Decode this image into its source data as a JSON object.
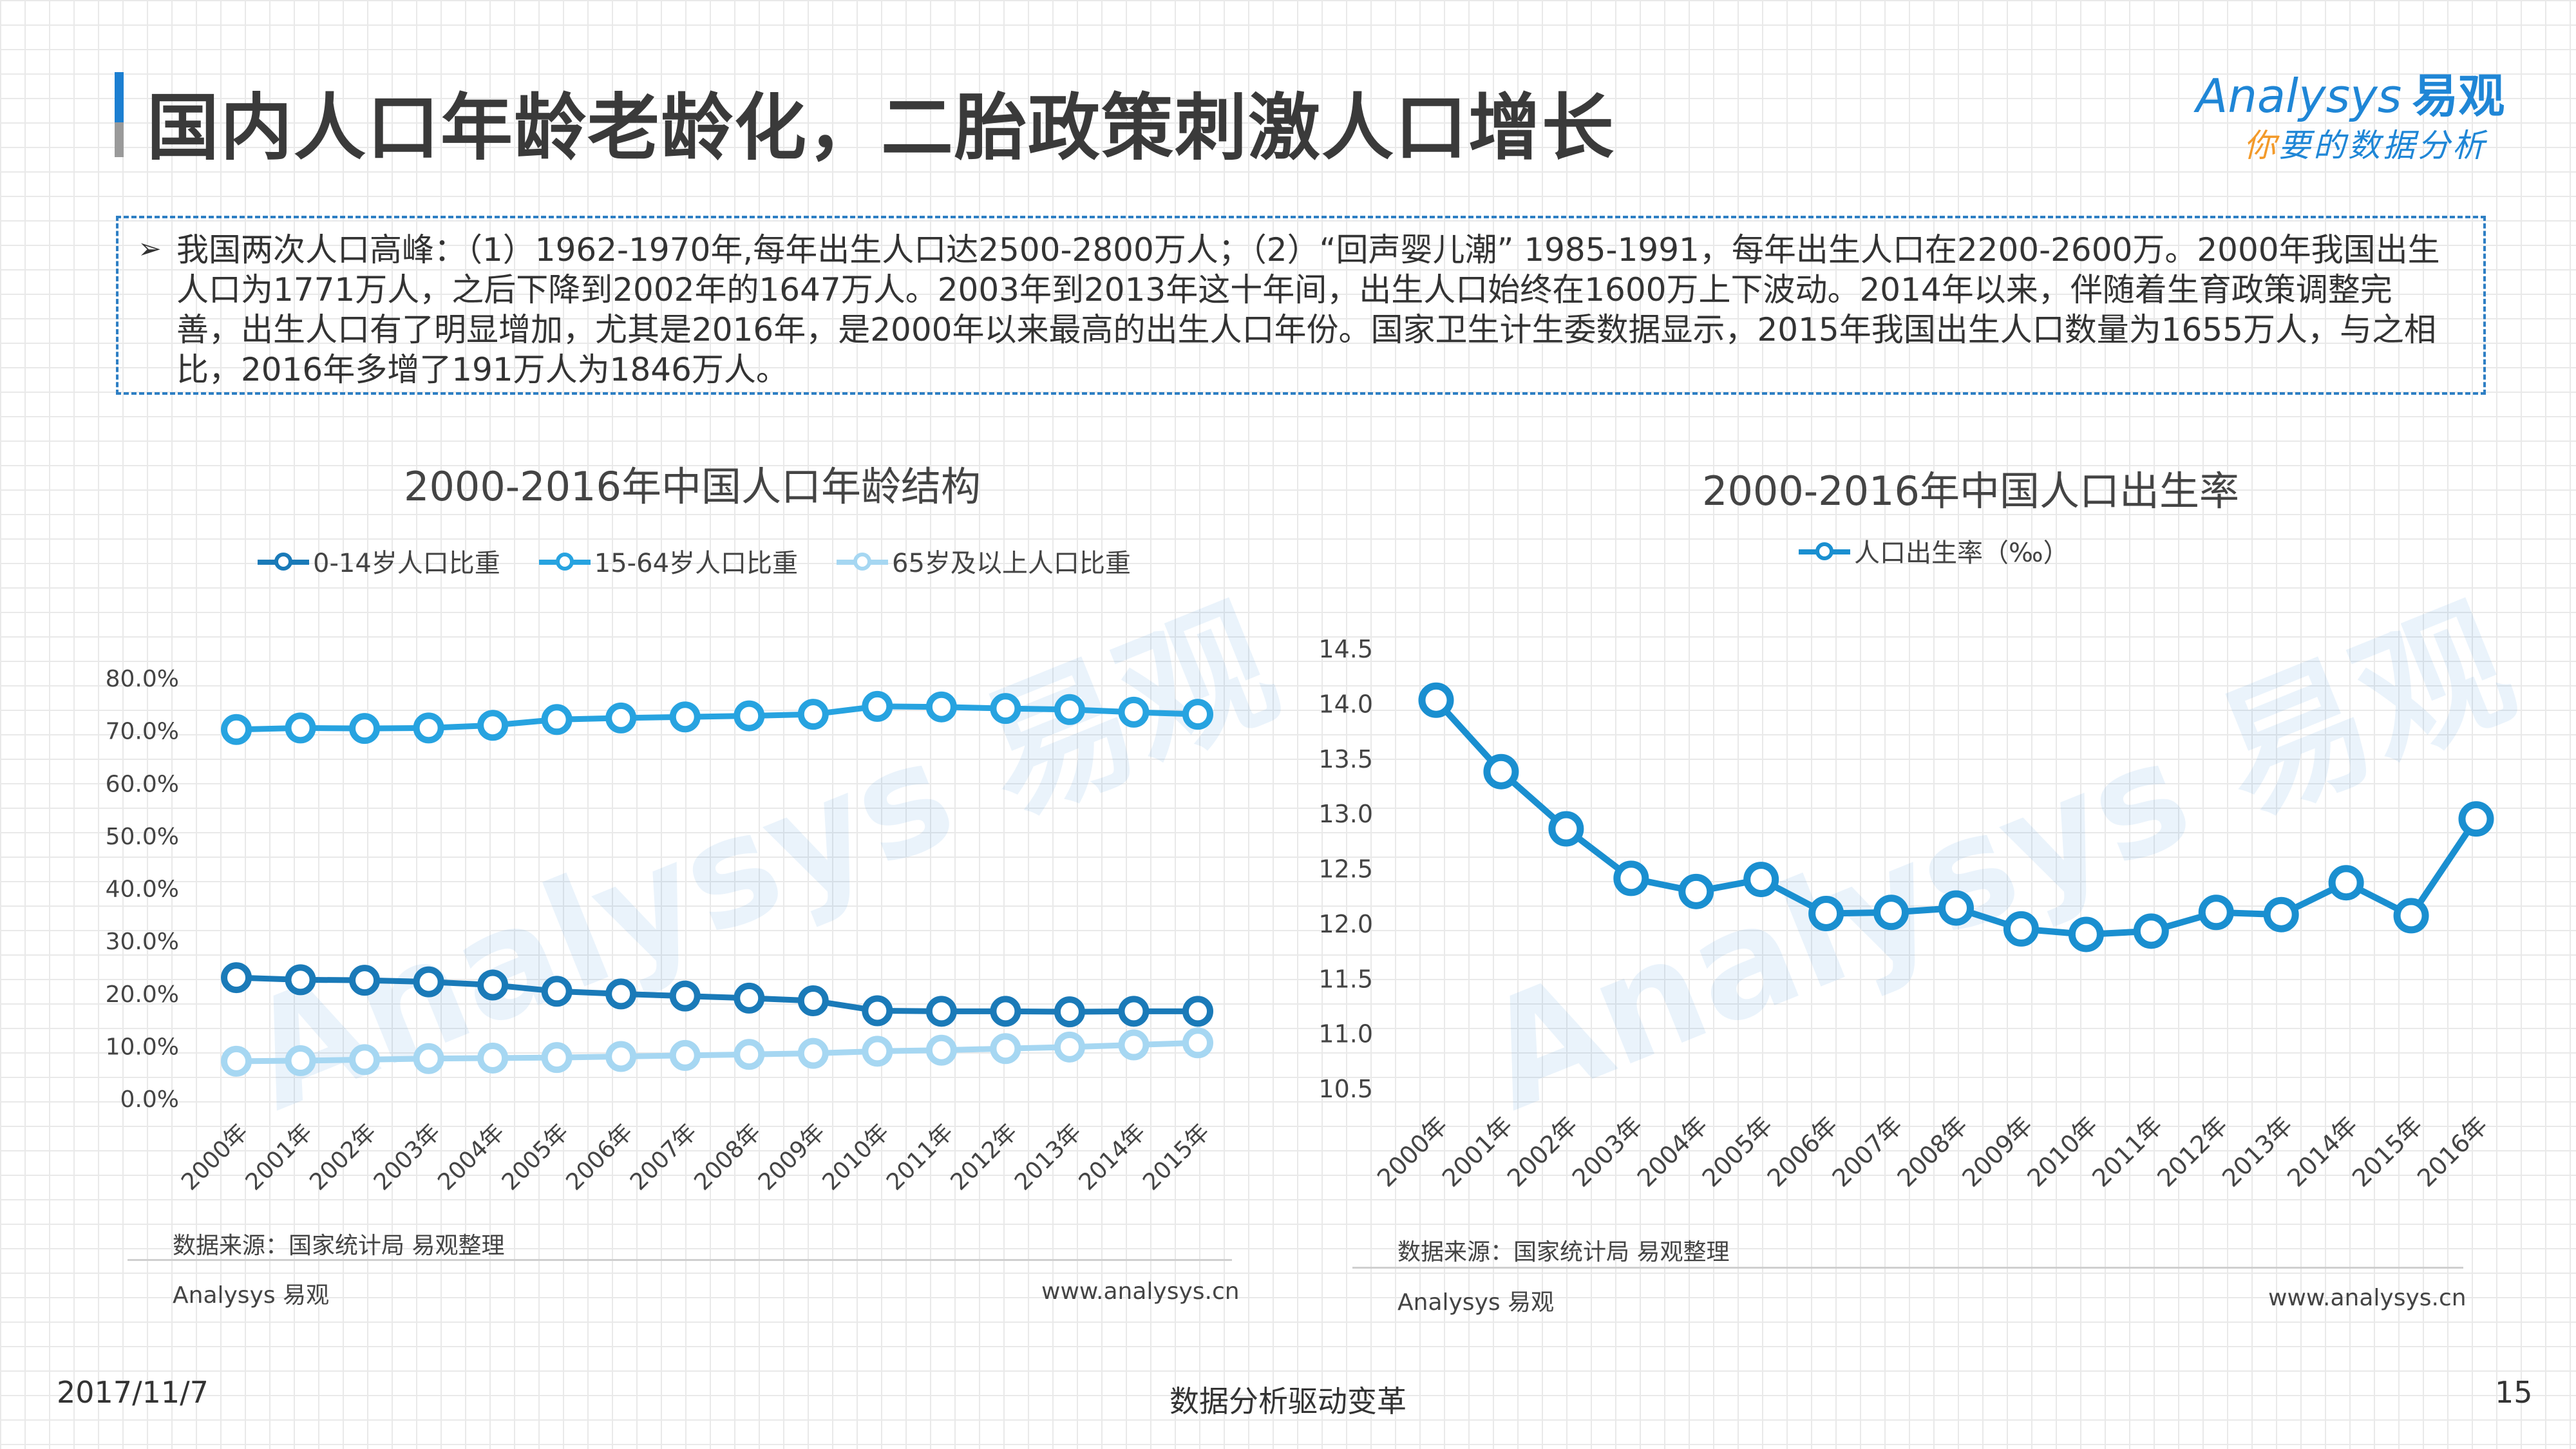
{
  "header": {
    "title": "国内人口年龄老龄化，二胎政策刺激人口增长",
    "logo_brand": "nalysys",
    "logo_brand_initial": "A",
    "logo_cn": "易观",
    "logo_slogan_first": "你",
    "logo_slogan_rest": "要的数据分析"
  },
  "summary": {
    "text": "我国两次人口高峰：（1）1962-1970年,每年出生人口达2500-2800万人；（2）“回声婴儿潮” 1985-1991，每年出生人口在2200-2600万。2000年我国出生人口为1771万人，之后下降到2002年的1647万人。2003年到2013年这十年间，出生人口始终在1600万上下波动。2014年以来，伴随着生育政策调整完善，出生人口有了明显增加，尤其是2016年，是2000年以来最高的出生人口年份。国家卫生计生委数据显示，2015年我国出生人口数量为1655万人，与之相比，2016年多增了191万人为1846万人。"
  },
  "chart_data": [
    {
      "type": "line",
      "title": "2000-2016年中国人口年龄结构",
      "categories": [
        "2000年",
        "2001年",
        "2002年",
        "2003年",
        "2004年",
        "2005年",
        "2006年",
        "2007年",
        "2008年",
        "2009年",
        "2010年",
        "2011年",
        "2012年",
        "2013年",
        "2014年",
        "2015年"
      ],
      "y_ticks": [
        "0.0%",
        "10.0%",
        "20.0%",
        "30.0%",
        "40.0%",
        "50.0%",
        "60.0%",
        "70.0%",
        "80.0%"
      ],
      "ylim": [
        0,
        80
      ],
      "series": [
        {
          "name": "0-14岁人口比重",
          "color": "#1a7ab8",
          "values": [
            22.9,
            22.5,
            22.4,
            22.1,
            21.5,
            20.3,
            19.8,
            19.4,
            19.0,
            18.5,
            16.6,
            16.5,
            16.5,
            16.4,
            16.5,
            16.5
          ]
        },
        {
          "name": "15-64岁人口比重",
          "color": "#27a3e0",
          "values": [
            70.1,
            70.4,
            70.3,
            70.4,
            70.9,
            72.0,
            72.3,
            72.5,
            72.7,
            73.0,
            74.5,
            74.4,
            74.1,
            73.9,
            73.4,
            73.0
          ]
        },
        {
          "name": "65岁及以上人口比重",
          "color": "#a6d7f2",
          "values": [
            7.0,
            7.1,
            7.3,
            7.5,
            7.6,
            7.7,
            7.9,
            8.1,
            8.3,
            8.5,
            8.9,
            9.1,
            9.4,
            9.7,
            10.1,
            10.5
          ]
        }
      ],
      "legend_position": "top",
      "grid": false,
      "source": "数据来源：国家统计局  易观整理",
      "footer_left": "Analysys 易观",
      "footer_right": "www.analysys.cn"
    },
    {
      "type": "line",
      "title": "2000-2016年中国人口出生率",
      "categories": [
        "2000年",
        "2001年",
        "2002年",
        "2003年",
        "2004年",
        "2005年",
        "2006年",
        "2007年",
        "2008年",
        "2009年",
        "2010年",
        "2011年",
        "2012年",
        "2013年",
        "2014年",
        "2015年",
        "2016年"
      ],
      "y_ticks": [
        "10.5",
        "11.0",
        "11.5",
        "12.0",
        "12.5",
        "13.0",
        "13.5",
        "14.0",
        "14.5"
      ],
      "ylim": [
        10.5,
        14.5
      ],
      "series": [
        {
          "name": "人口出生率（‰）",
          "color": "#1a8fd0",
          "values": [
            14.03,
            13.38,
            12.86,
            12.41,
            12.29,
            12.4,
            12.09,
            12.1,
            12.14,
            11.95,
            11.9,
            11.93,
            12.1,
            12.08,
            12.37,
            12.07,
            12.95
          ]
        }
      ],
      "legend_position": "top",
      "grid": false,
      "source": "数据来源：国家统计局  易观整理",
      "footer_left": "Analysys 易观",
      "footer_right": "www.analysys.cn"
    }
  ],
  "footer": {
    "date": "2017/11/7",
    "center": "数据分析驱动变革",
    "page": "15"
  },
  "colors": {
    "accent": "#1c7fd1",
    "title_text": "#3a3a3a",
    "summary_border": "#2e7fc4"
  }
}
